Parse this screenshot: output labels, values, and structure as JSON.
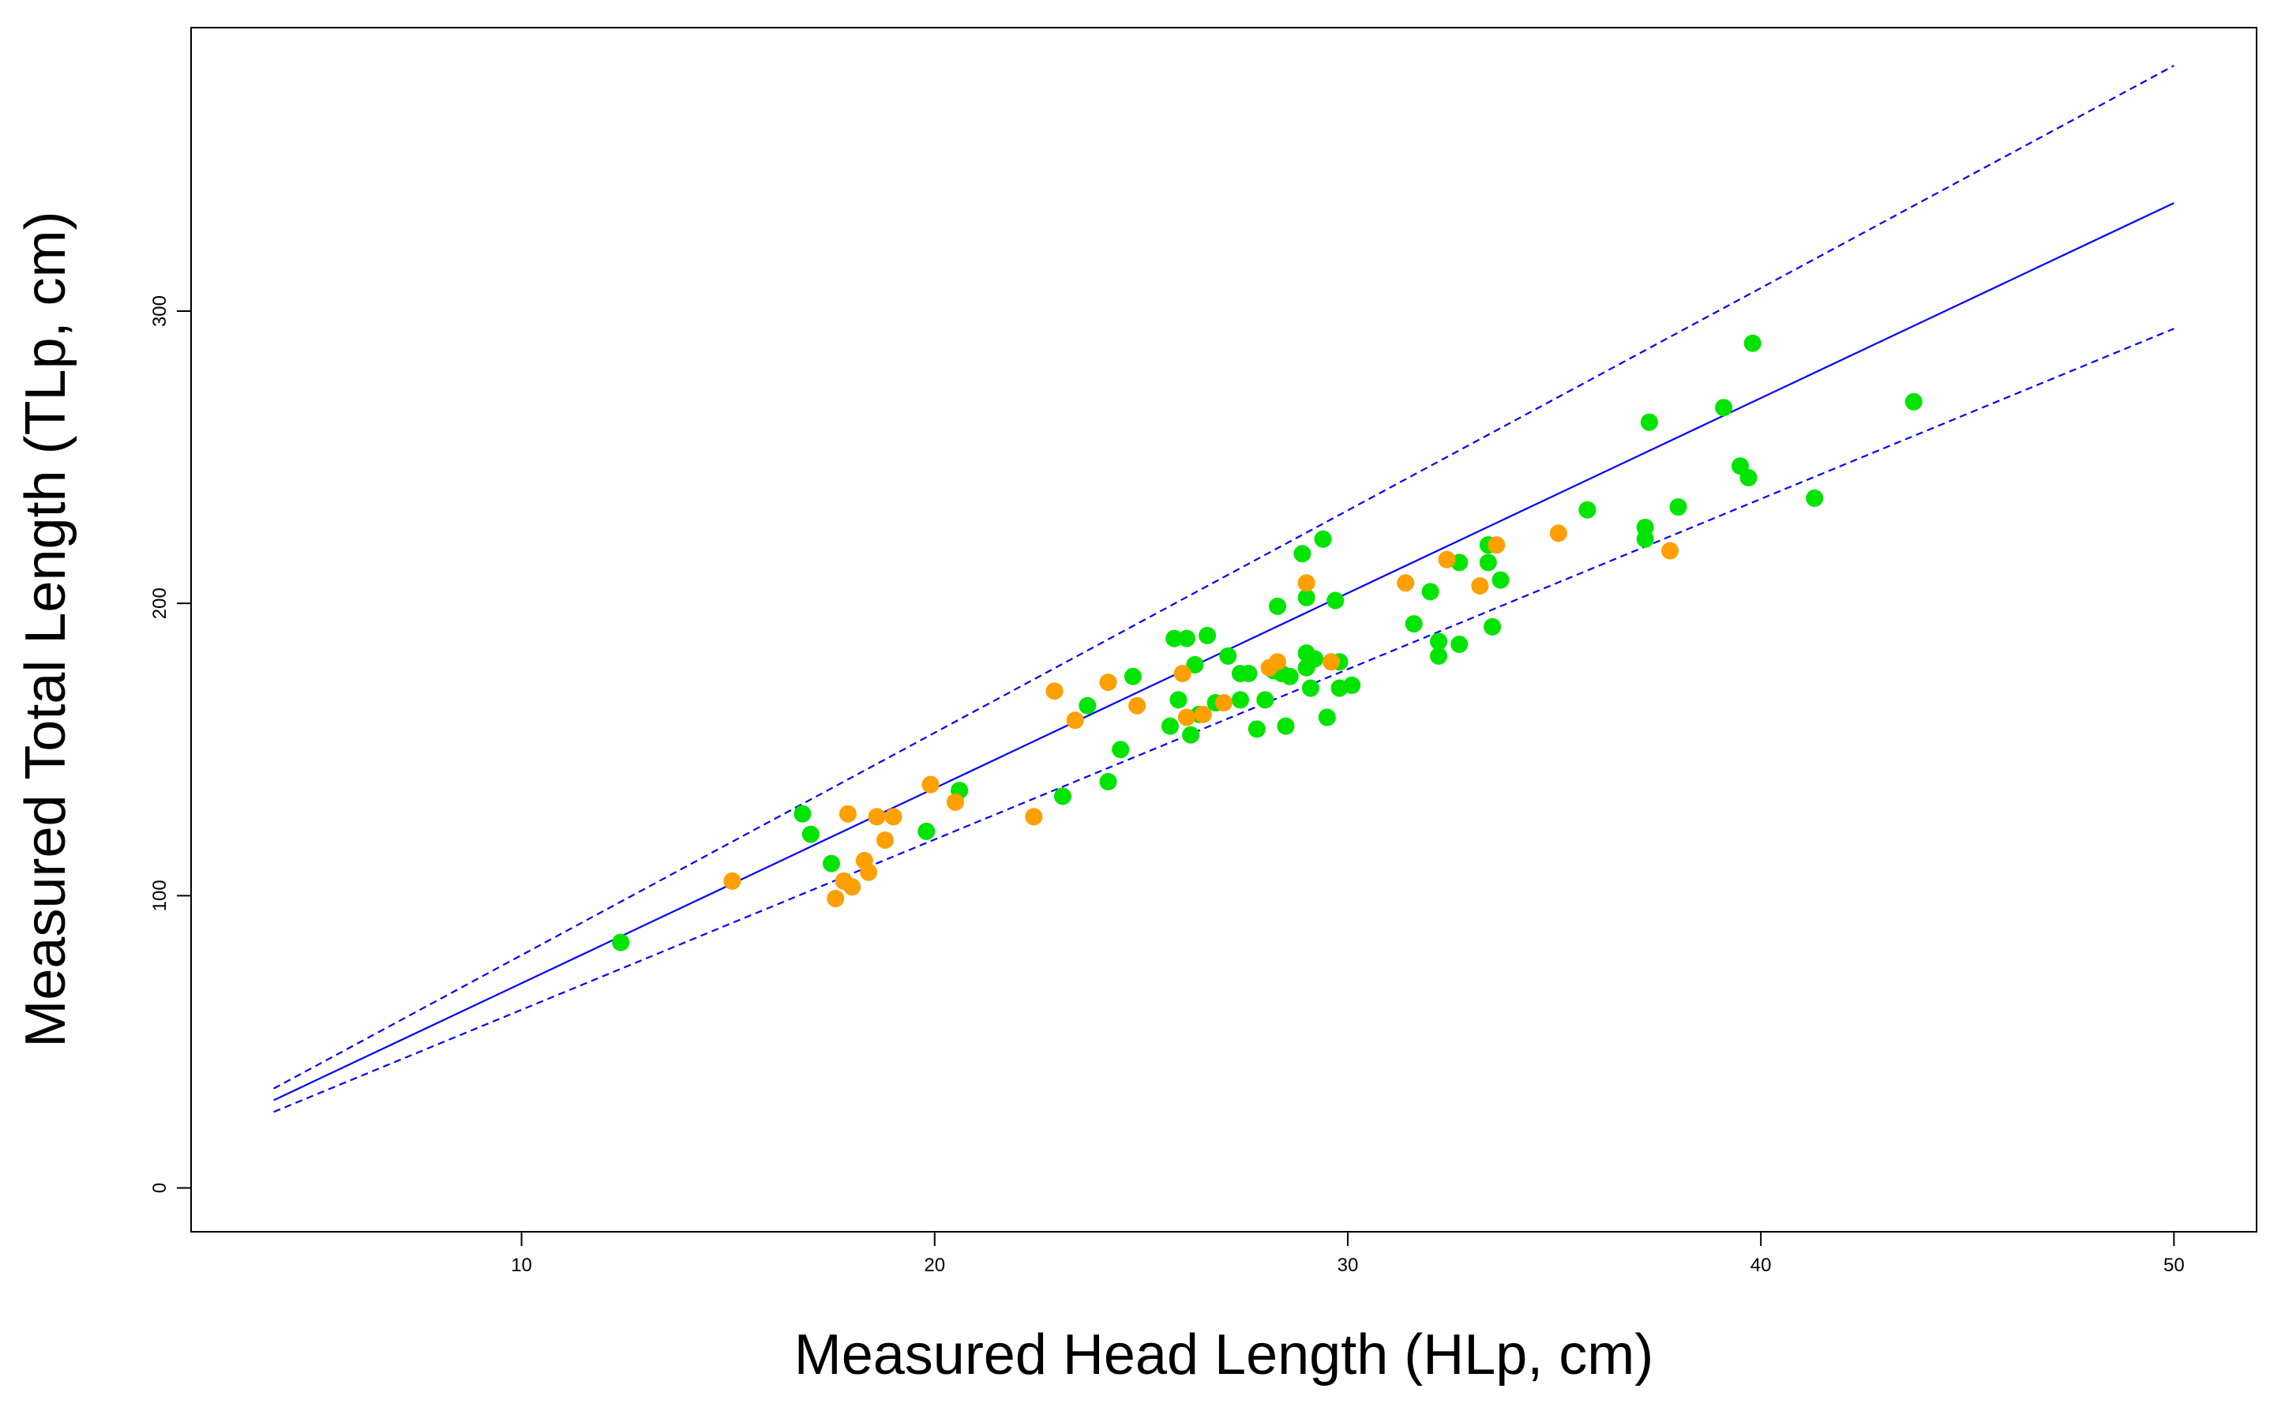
{
  "chart_data": {
    "type": "scatter",
    "title": "",
    "xlabel": "Measured Head Length (HLp, cm)",
    "ylabel": "Measured Total Length (TLp, cm)",
    "xlim": [
      2,
      52
    ],
    "ylim": [
      -15,
      397
    ],
    "x_ticks": [
      "10",
      "20",
      "30",
      "40",
      "50"
    ],
    "y_ticks": [
      "0",
      "100",
      "200",
      "300"
    ],
    "grid": false,
    "legend": "none",
    "colors": {
      "green": "#00e400",
      "orange": "#ff9f00",
      "line": "#0000ff"
    },
    "lines": [
      {
        "style": "dashed",
        "points": [
          [
            4,
            34
          ],
          [
            50,
            384
          ]
        ]
      },
      {
        "style": "solid",
        "points": [
          [
            4,
            30
          ],
          [
            50,
            337
          ]
        ]
      },
      {
        "style": "dashed",
        "points": [
          [
            4,
            26
          ],
          [
            50,
            294
          ]
        ]
      }
    ],
    "series": [
      {
        "color": "green",
        "points": [
          [
            12.4,
            84
          ],
          [
            16.8,
            128
          ],
          [
            17.0,
            121
          ],
          [
            17.5,
            111
          ],
          [
            19.8,
            122
          ],
          [
            20.6,
            136
          ],
          [
            23.1,
            134
          ],
          [
            23.7,
            165
          ],
          [
            24.2,
            139
          ],
          [
            24.5,
            150
          ],
          [
            24.8,
            175
          ],
          [
            25.7,
            158
          ],
          [
            25.8,
            188
          ],
          [
            25.9,
            167
          ],
          [
            26.1,
            188
          ],
          [
            26.2,
            155
          ],
          [
            26.3,
            179
          ],
          [
            26.4,
            162
          ],
          [
            26.6,
            189
          ],
          [
            26.8,
            166
          ],
          [
            27.1,
            182
          ],
          [
            27.4,
            176
          ],
          [
            27.4,
            167
          ],
          [
            27.6,
            176
          ],
          [
            27.8,
            157
          ],
          [
            28.0,
            167
          ],
          [
            28.2,
            177
          ],
          [
            28.3,
            199
          ],
          [
            28.4,
            176
          ],
          [
            28.5,
            158
          ],
          [
            28.6,
            175
          ],
          [
            28.9,
            217
          ],
          [
            29.0,
            178
          ],
          [
            29.0,
            183
          ],
          [
            29.0,
            202
          ],
          [
            29.1,
            171
          ],
          [
            29.2,
            181
          ],
          [
            29.4,
            222
          ],
          [
            29.5,
            161
          ],
          [
            29.7,
            201
          ],
          [
            29.8,
            171
          ],
          [
            29.8,
            180
          ],
          [
            30.1,
            172
          ],
          [
            31.6,
            193
          ],
          [
            32.0,
            204
          ],
          [
            32.2,
            187
          ],
          [
            32.2,
            182
          ],
          [
            32.7,
            186
          ],
          [
            32.7,
            214
          ],
          [
            33.4,
            214
          ],
          [
            33.4,
            220
          ],
          [
            33.5,
            192
          ],
          [
            33.7,
            208
          ],
          [
            35.8,
            232
          ],
          [
            37.2,
            222
          ],
          [
            37.2,
            226
          ],
          [
            37.3,
            262
          ],
          [
            38.0,
            233
          ],
          [
            39.1,
            267
          ],
          [
            39.5,
            247
          ],
          [
            39.7,
            243
          ],
          [
            39.8,
            289
          ],
          [
            41.3,
            236
          ],
          [
            43.7,
            269
          ]
        ]
      },
      {
        "color": "orange",
        "points": [
          [
            15.1,
            105
          ],
          [
            17.6,
            99
          ],
          [
            17.8,
            105
          ],
          [
            17.9,
            128
          ],
          [
            18.0,
            103
          ],
          [
            18.3,
            112
          ],
          [
            18.4,
            108
          ],
          [
            18.6,
            127
          ],
          [
            18.8,
            119
          ],
          [
            19.0,
            127
          ],
          [
            19.9,
            138
          ],
          [
            20.5,
            132
          ],
          [
            22.4,
            127
          ],
          [
            22.9,
            170
          ],
          [
            23.4,
            160
          ],
          [
            24.2,
            173
          ],
          [
            24.9,
            165
          ],
          [
            26.0,
            176
          ],
          [
            26.1,
            161
          ],
          [
            26.5,
            162
          ],
          [
            27.0,
            166
          ],
          [
            28.1,
            178
          ],
          [
            28.3,
            180
          ],
          [
            29.0,
            207
          ],
          [
            29.6,
            180
          ],
          [
            31.4,
            207
          ],
          [
            32.4,
            215
          ],
          [
            33.2,
            206
          ],
          [
            33.6,
            220
          ],
          [
            35.1,
            224
          ],
          [
            37.8,
            218
          ]
        ]
      }
    ]
  }
}
